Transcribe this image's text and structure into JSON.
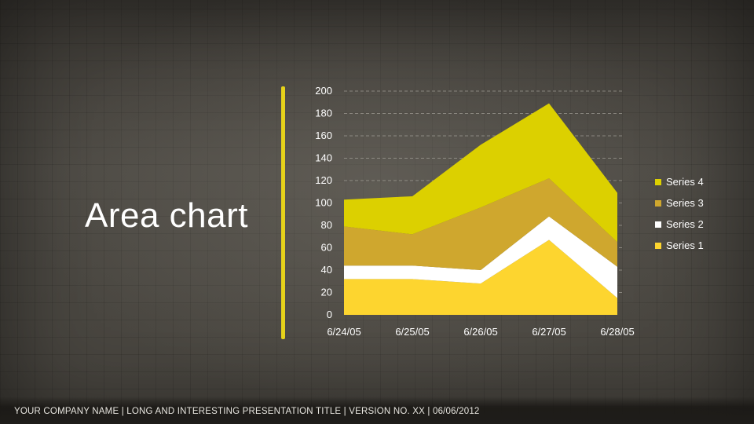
{
  "slide": {
    "title": "Area chart",
    "footer": "YOUR COMPANY NAME  |  LONG AND INTERESTING PRESENTATION TITLE  |  VERSION NO. XX  |  06/06/2012"
  },
  "colors": {
    "series1": "#fdd52f",
    "series2": "#ffffff",
    "series3": "#cfa72e",
    "series4": "#dcd000",
    "divider": "#e6d21a"
  },
  "chart_data": {
    "type": "area",
    "stacked": true,
    "categories": [
      "6/24/05",
      "6/25/05",
      "6/26/05",
      "6/27/05",
      "6/28/05"
    ],
    "ylim": [
      0,
      200
    ],
    "yticks": [
      "0",
      "20",
      "40",
      "60",
      "80",
      "100",
      "120",
      "140",
      "160",
      "180",
      "200"
    ],
    "grid": "horizontal dashed",
    "legend": "right",
    "series": [
      {
        "name": "Series 1",
        "values": [
          32,
          32,
          28,
          67,
          15
        ]
      },
      {
        "name": "Series 2",
        "values": [
          12,
          12,
          12,
          21,
          28
        ]
      },
      {
        "name": "Series 3",
        "values": [
          35,
          28,
          56,
          34,
          22
        ]
      },
      {
        "name": "Series 4",
        "values": [
          24,
          34,
          56,
          67,
          44
        ]
      }
    ],
    "legend_order": [
      "Series 4",
      "Series 3",
      "Series 2",
      "Series 1"
    ]
  }
}
